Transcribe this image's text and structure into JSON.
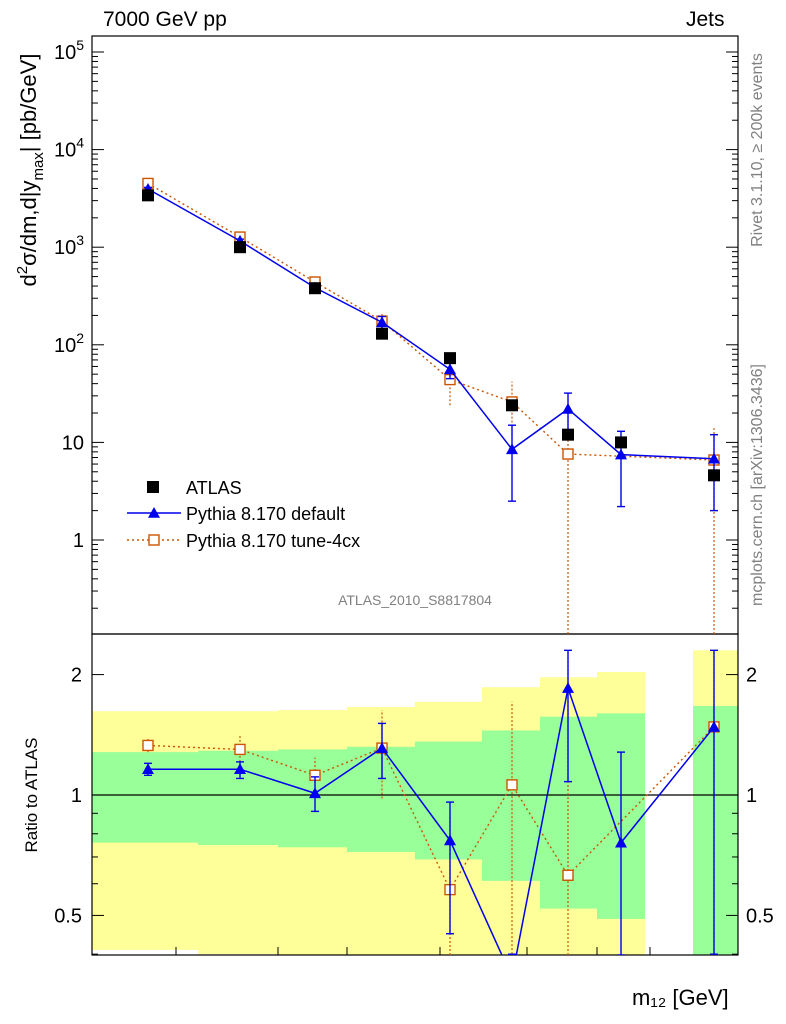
{
  "header": {
    "left_title": "7000 GeV pp",
    "right_title": "Jets"
  },
  "side_labels": {
    "rivet": "Rivet 3.1.10, ≥ 200k events",
    "mcplots": "mcplots.cern.ch [arXiv:1306.3436]"
  },
  "analysis_label": "ATLAS_2010_S8817804",
  "colors": {
    "data": "#000000",
    "default": "#0000ee",
    "tune": "#cc5500",
    "band_inner": "#99ff99",
    "band_outer": "#ffff99"
  },
  "chart_data": [
    {
      "type": "scatter",
      "panel": "main",
      "ylabel": "d²σ/dm,d|y_max| [pb/GeV]",
      "yscale": "log",
      "ylim": [
        0.1,
        150000
      ],
      "yticks": [
        "1",
        "10",
        "10²",
        "10³",
        "10⁴",
        "10⁵"
      ],
      "legend_position": "lower-left",
      "series": [
        {
          "name": "ATLAS",
          "marker": "filled-square",
          "points": [
            {
              "bin": 1,
              "y": 3400
            },
            {
              "bin": 2,
              "y": 1000
            },
            {
              "bin": 3,
              "y": 380
            },
            {
              "bin": 4,
              "y": 130
            },
            {
              "bin": 5,
              "y": 73
            },
            {
              "bin": 6,
              "y": 24
            },
            {
              "bin": 7,
              "y": 12
            },
            {
              "bin": 8,
              "y": 10
            },
            {
              "bin": 9,
              "y": 4.6
            }
          ]
        },
        {
          "name": "Pythia 8.170 default",
          "marker": "filled-triangle",
          "line": "solid",
          "points": [
            {
              "bin": 1,
              "y": 3950,
              "lo": 3800,
              "hi": 4100
            },
            {
              "bin": 2,
              "y": 1160,
              "lo": 1110,
              "hi": 1210
            },
            {
              "bin": 3,
              "y": 385,
              "lo": 360,
              "hi": 410
            },
            {
              "bin": 4,
              "y": 170,
              "lo": 145,
              "hi": 195
            },
            {
              "bin": 5,
              "y": 56,
              "lo": 45,
              "hi": 70
            },
            {
              "bin": 6,
              "y": 8.5,
              "lo": 2.5,
              "hi": 15
            },
            {
              "bin": 7,
              "y": 22,
              "lo": 13,
              "hi": 32
            },
            {
              "bin": 8,
              "y": 7.5,
              "lo": 2.2,
              "hi": 13
            },
            {
              "bin": 9,
              "y": 6.8,
              "lo": 2,
              "hi": 12
            }
          ]
        },
        {
          "name": "Pythia 8.170 tune-4cx",
          "marker": "open-square",
          "line": "dotted",
          "points": [
            {
              "bin": 1,
              "y": 4500,
              "lo": 4300,
              "hi": 4800
            },
            {
              "bin": 2,
              "y": 1270,
              "lo": 1180,
              "hi": 1380
            },
            {
              "bin": 3,
              "y": 440,
              "lo": 400,
              "hi": 480
            },
            {
              "bin": 4,
              "y": 175,
              "lo": 135,
              "hi": 215
            },
            {
              "bin": 5,
              "y": 44,
              "lo": 24,
              "hi": 65
            },
            {
              "bin": 6,
              "y": 26,
              "lo": 12,
              "hi": 42
            },
            {
              "bin": 7,
              "y": 7.6,
              "lo": 0.01,
              "hi": 20
            },
            {
              "bin": 9,
              "y": 6.6,
              "lo": 0.01,
              "hi": 14
            }
          ]
        }
      ]
    },
    {
      "type": "scatter",
      "panel": "ratio",
      "xlabel": "m₁₂ [GeV]",
      "ylabel": "Ratio to ATLAS",
      "yscale": "log",
      "ylim": [
        0.38,
        2.3
      ],
      "yticks": [
        "0.5",
        "1",
        "2"
      ],
      "reference_line": 1,
      "bands": [
        {
          "bin": 1,
          "inner": [
            0.76,
            1.28
          ],
          "outer": [
            0.41,
            1.62
          ]
        },
        {
          "bin": 2,
          "inner": [
            0.75,
            1.29
          ],
          "outer": [
            0.4,
            1.62
          ]
        },
        {
          "bin": 3,
          "inner": [
            0.74,
            1.3
          ],
          "outer": [
            0.39,
            1.63
          ]
        },
        {
          "bin": 4,
          "inner": [
            0.72,
            1.32
          ],
          "outer": [
            0.39,
            1.66
          ]
        },
        {
          "bin": 5,
          "inner": [
            0.69,
            1.36
          ],
          "outer": [
            0.39,
            1.71
          ]
        },
        {
          "bin": 6,
          "inner": [
            0.61,
            1.45
          ],
          "outer": [
            0.39,
            1.86
          ]
        },
        {
          "bin": 7,
          "inner": [
            0.52,
            1.57
          ],
          "outer": [
            0.39,
            1.97
          ]
        },
        {
          "bin": 8,
          "inner": [
            0.49,
            1.6
          ],
          "outer": [
            0.39,
            2.03
          ]
        },
        {
          "bin": 9,
          "inner": [
            0.38,
            1.67
          ],
          "outer": [
            0.38,
            2.3
          ]
        }
      ],
      "series": [
        {
          "name": "Pythia 8.170 default",
          "points": [
            {
              "bin": 1,
              "y": 1.16,
              "lo": 1.12,
              "hi": 1.2
            },
            {
              "bin": 2,
              "y": 1.16,
              "lo": 1.1,
              "hi": 1.21
            },
            {
              "bin": 3,
              "y": 1.01,
              "lo": 0.91,
              "hi": 1.11
            },
            {
              "bin": 4,
              "y": 1.31,
              "lo": 1.1,
              "hi": 1.51
            },
            {
              "bin": 5,
              "y": 0.77,
              "lo": 0.45,
              "hi": 0.96
            },
            {
              "bin": 6,
              "y": 0.35,
              "lo": 0.2,
              "hi": 0.4
            },
            {
              "bin": 7,
              "y": 1.85,
              "lo": 1.08,
              "hi": 2.3
            },
            {
              "bin": 8,
              "y": 0.76,
              "lo": 0.3,
              "hi": 1.28
            },
            {
              "bin": 9,
              "y": 1.48,
              "lo": 0.4,
              "hi": 2.3
            }
          ]
        },
        {
          "name": "Pythia 8.170 tune-4cx",
          "points": [
            {
              "bin": 1,
              "y": 1.33,
              "lo": 1.28,
              "hi": 1.38
            },
            {
              "bin": 2,
              "y": 1.3,
              "lo": 1.21,
              "hi": 1.42
            },
            {
              "bin": 3,
              "y": 1.12,
              "lo": 1.0,
              "hi": 1.24
            },
            {
              "bin": 4,
              "y": 1.31,
              "lo": 0.98,
              "hi": 1.63
            },
            {
              "bin": 5,
              "y": 0.58,
              "lo": 0.3,
              "hi": 0.88
            },
            {
              "bin": 6,
              "y": 1.06,
              "lo": 0.4,
              "hi": 1.71
            },
            {
              "bin": 7,
              "y": 0.63,
              "lo": 0.3,
              "hi": 2.3
            },
            {
              "bin": 9,
              "y": 1.48,
              "lo": 0.4,
              "hi": 2.3
            }
          ]
        }
      ]
    }
  ]
}
